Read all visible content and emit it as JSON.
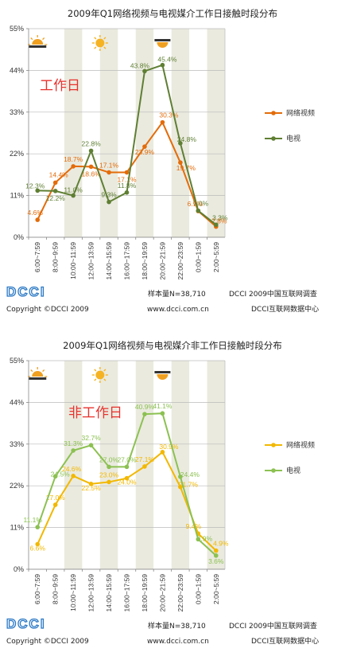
{
  "source_logo": "DCCI",
  "chart_data": [
    {
      "type": "line",
      "title": "2009年Q1网络视频与电视媒介工作日接触时段分布",
      "annotation": "工作日",
      "yticks": [
        "0%",
        "11%",
        "22%",
        "33%",
        "44%",
        "55%"
      ],
      "ylim": [
        0,
        55
      ],
      "categories": [
        "6:00~7:59",
        "8:00~9:59",
        "10:00~11:59",
        "12:00~13:59",
        "14:00~15:59",
        "16:00~17:59",
        "18:00~19:59",
        "20:00~21:59",
        "22:00~23:59",
        "0:00~1:59",
        "2:00~5:59"
      ],
      "series": [
        {
          "name": "网络视频",
          "color": "#e36c0a",
          "values": [
            4.6,
            14.4,
            18.7,
            18.6,
            17.1,
            17.1,
            23.9,
            30.3,
            19.7,
            6.9,
            2.8
          ],
          "labels": [
            "4.6%",
            "14.4%",
            "18.7%",
            "18.6%",
            "17.1%",
            "17.1%",
            "23.9%",
            "30.3%",
            "19.7%",
            "6.9%",
            "2.8%"
          ]
        },
        {
          "name": "电视",
          "color": "#5f7f33",
          "values": [
            12.3,
            12.2,
            11.0,
            22.8,
            9.3,
            11.8,
            43.8,
            45.4,
            24.8,
            7.0,
            3.3
          ],
          "labels": [
            "12.3%",
            "12.2%",
            "11.0%",
            "22.8%",
            "9.3%",
            "11.8%",
            "43.8%",
            "45.4%",
            "24.8%",
            "7.0%",
            "3.3%"
          ]
        }
      ],
      "icons": [
        "sunrise-icon",
        "sun-icon",
        "sunset-icon",
        "moon-icon"
      ],
      "footer": {
        "copyright": "Copyright ©DCCI 2009",
        "sample": "样本量N=38,710",
        "org": "DCCI 2009中国互联网调查",
        "url": "www.dcci.com.cn",
        "center": "DCCI互联网数据中心"
      }
    },
    {
      "type": "line",
      "title": "2009年Q1网络视频与电视媒介非工作日接触时段分布",
      "annotation": "非工作日",
      "yticks": [
        "0%",
        "11%",
        "22%",
        "33%",
        "44%",
        "55%"
      ],
      "ylim": [
        0,
        55
      ],
      "categories": [
        "6:00~7:59",
        "8:00~9:59",
        "10:00~11:59",
        "12:00~13:59",
        "14:00~15:59",
        "16:00~17:59",
        "18:00~19:59",
        "20:00~21:59",
        "22:00~23:59",
        "0:00~1:59",
        "2:00~5:59"
      ],
      "series": [
        {
          "name": "网络视频",
          "color": "#f2b800",
          "values": [
            6.6,
            17.0,
            24.6,
            22.5,
            23.0,
            24.0,
            27.1,
            30.9,
            21.7,
            9.4,
            4.9
          ],
          "labels": [
            "6.6%",
            "17.0%",
            "24.6%",
            "22.5%",
            "23.0%",
            "24.0%",
            "27.1%",
            "30.9%",
            "21.7%",
            "9.4%",
            "4.9%"
          ]
        },
        {
          "name": "电视",
          "color": "#8cc152",
          "values": [
            11.1,
            24.5,
            31.3,
            32.7,
            27.0,
            27.0,
            40.9,
            41.1,
            24.4,
            7.9,
            3.6
          ],
          "labels": [
            "11.1%",
            "24.5%",
            "31.3%",
            "32.7%",
            "27.0%",
            "27.0%",
            "40.9%",
            "41.1%",
            "24.4%",
            "7.9%",
            "3.6%"
          ]
        }
      ],
      "icons": [
        "sunrise-icon",
        "sun-icon",
        "sunset-icon",
        "moon-icon"
      ],
      "footer": {
        "copyright": "Copyright ©DCCI 2009",
        "sample": "样本量N=38,710",
        "org": "DCCI 2009中国互联网调查",
        "url": "www.dcci.com.cn",
        "center": "DCCI互联网数据中心"
      }
    }
  ]
}
